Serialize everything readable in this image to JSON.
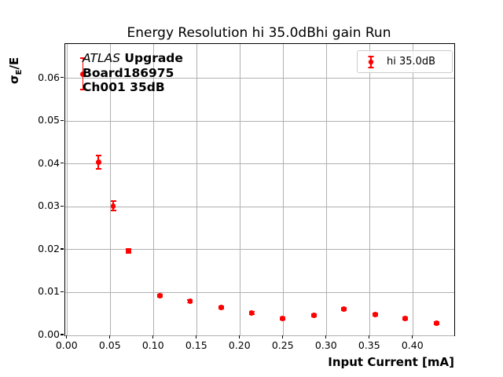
{
  "title": "Energy Resolution hi 35.0dBhi gain Run",
  "x_axis": {
    "label": "Input Current [mA]"
  },
  "y_axis": {
    "label_sigma": "σ",
    "label_sub": "E",
    "label_rest": "/E"
  },
  "legend": {
    "label": "hi 35.0dB",
    "marker_color": "#ff0000",
    "marker_icon": "errorbar-point-icon"
  },
  "annotation": {
    "line1_italic": "ATLAS",
    "line1_bold": " Upgrade",
    "line2": "Board186975",
    "line3": "Ch001 35dB"
  },
  "colors": {
    "series": "#ff0000",
    "grid": "#b0b0b0",
    "axis": "#000000",
    "legend_border": "#cccccc"
  },
  "chart_data": {
    "type": "scatter",
    "title": "Energy Resolution hi 35.0dBhi gain Run",
    "xlabel": "Input Current [mA]",
    "ylabel": "sigma_E/E",
    "xlim": [
      -0.0025,
      0.4475
    ],
    "ylim": [
      0,
      0.068
    ],
    "grid": true,
    "legend_position": "upper right",
    "x_ticks": [
      0,
      0.05,
      0.1,
      0.15,
      0.2,
      0.25,
      0.3,
      0.35,
      0.4
    ],
    "x_tick_labels": [
      "0.00",
      "0.05",
      "0.10",
      "0.15",
      "0.20",
      "0.25",
      "0.30",
      "0.35",
      "0.40"
    ],
    "y_ticks": [
      0,
      0.01,
      0.02,
      0.03,
      0.04,
      0.05,
      0.06
    ],
    "y_tick_labels": [
      "0.00",
      "0.01",
      "0.02",
      "0.03",
      "0.04",
      "0.05",
      "0.06"
    ],
    "series": [
      {
        "name": "hi 35.0dB",
        "color": "#ff0000",
        "marker": "circle-with-errorbars",
        "x": [
          0.018,
          0.036,
          0.053,
          0.071,
          0.107,
          0.142,
          0.178,
          0.213,
          0.249,
          0.285,
          0.32,
          0.356,
          0.391,
          0.427
        ],
        "y": [
          0.061,
          0.0404,
          0.0302,
          0.0197,
          0.0093,
          0.0079,
          0.0065,
          0.0052,
          0.004,
          0.0047,
          0.0061,
          0.0048,
          0.004,
          0.0028
        ],
        "yerr": [
          0.0037,
          0.0016,
          0.0011,
          0.0005,
          0.0003,
          0.0003,
          0.0003,
          0.0003,
          0.0003,
          0.0003,
          0.0003,
          0.0003,
          0.0003,
          0.0003
        ]
      }
    ]
  }
}
